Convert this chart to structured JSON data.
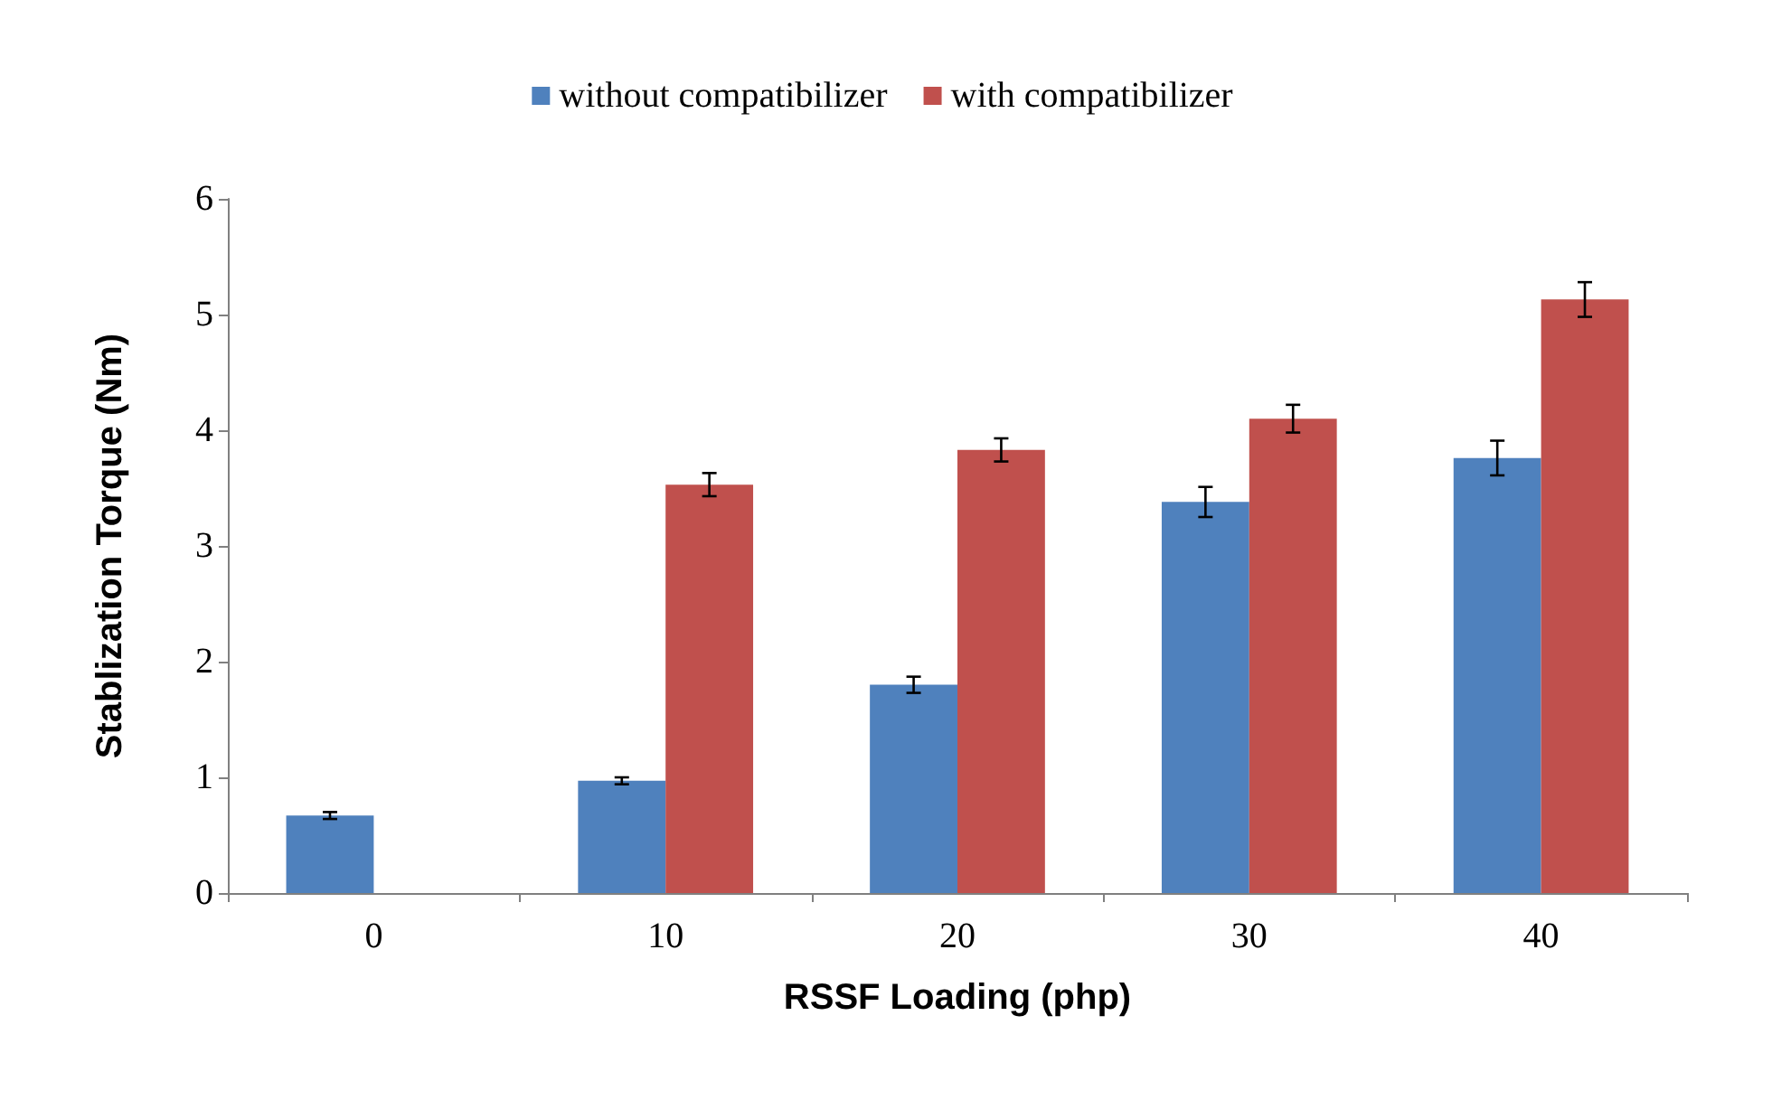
{
  "chart_data": {
    "type": "bar",
    "xlabel": "RSSF Loading (php)",
    "ylabel": "Stablization Torque (Nm)",
    "categories": [
      "0",
      "10",
      "20",
      "30",
      "40"
    ],
    "series": [
      {
        "name": "without compatibilizer",
        "color": "#4f81bd",
        "values": [
          0.67,
          0.97,
          1.8,
          3.38,
          3.76
        ],
        "errors": [
          0.03,
          0.03,
          0.07,
          0.13,
          0.15
        ]
      },
      {
        "name": "with compatibilizer",
        "color": "#c0504d",
        "values": [
          null,
          3.53,
          3.83,
          4.1,
          5.13
        ],
        "errors": [
          null,
          0.1,
          0.1,
          0.12,
          0.15
        ]
      }
    ],
    "ylim": [
      0,
      6
    ],
    "yticks": [
      0,
      1,
      2,
      3,
      4,
      5,
      6
    ],
    "grid": false,
    "legend": "top"
  }
}
